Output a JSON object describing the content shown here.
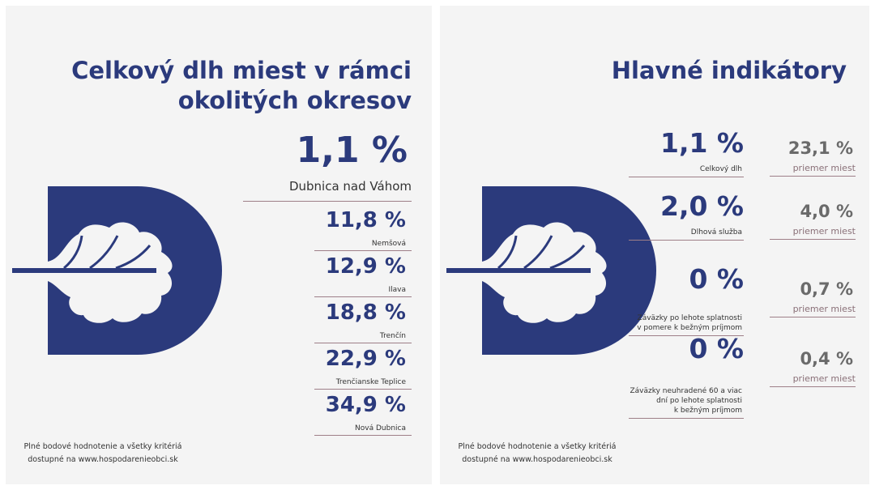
{
  "left": {
    "title_line1": "Celkový dlh miest v rámci",
    "title_line2": "okolitých okresov",
    "main": {
      "value": "1,1 %",
      "label": "Dubnica nad Váhom"
    },
    "items": [
      {
        "value": "11,8 %",
        "label": "Nemšová"
      },
      {
        "value": "12,9 %",
        "label": "Ilava"
      },
      {
        "value": "18,8 %",
        "label": "Trenčín"
      },
      {
        "value": "22,9 %",
        "label": "Trenčianske Teplice"
      },
      {
        "value": "34,9 %",
        "label": "Nová Dubnica"
      }
    ],
    "footer_line1": "Plné bodové hodnotenie a všetky kritériá",
    "footer_line2": "dostupné na www.hospodarenieobci.sk"
  },
  "right": {
    "title": "Hlavné indikátory",
    "rows": [
      {
        "value": "1,1 %",
        "label_lines": [
          "Celkový dlh"
        ],
        "avg_value": "23,1 %",
        "avg_label": "priemer miest"
      },
      {
        "value": "2,0 %",
        "label_lines": [
          "Dlhová služba"
        ],
        "avg_value": "4,0 %",
        "avg_label": "priemer miest"
      },
      {
        "value": "0 %",
        "label_lines": [
          "Záväzky po lehote splatnosti",
          "v pomere k bežným príjmom"
        ],
        "avg_value": "0,7 %",
        "avg_label": "priemer miest"
      },
      {
        "value": "0 %",
        "label_lines": [
          "Záväzky neuhradené 60 a viac",
          "dní po lehote splatnosti",
          "k bežným príjmom"
        ],
        "avg_value": "0,4 %",
        "avg_label": "priemer miest"
      }
    ],
    "footer_line1": "Plné bodové hodnotenie a všetky kritériá",
    "footer_line2": "dostupné na www.hospodarenieobci.sk"
  },
  "colors": {
    "navy": "#2b3a7c",
    "line": "#9e7f88",
    "bg": "#f4f4f4"
  }
}
